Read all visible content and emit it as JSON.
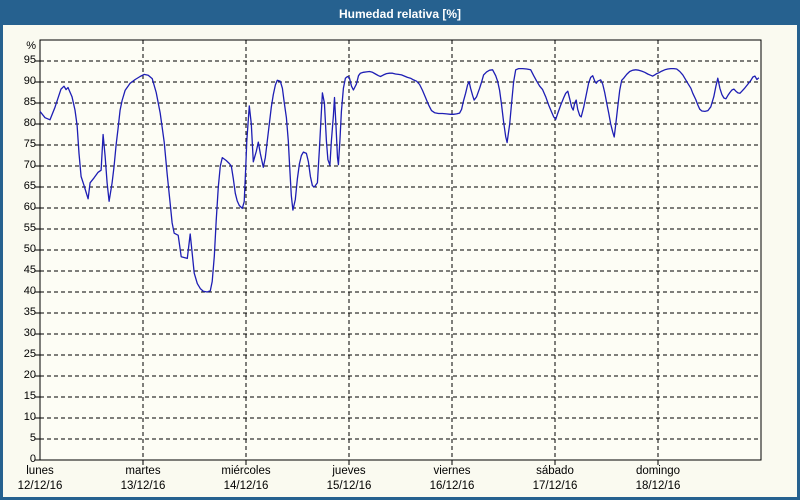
{
  "window": {
    "title": "Humedad relativa [%]"
  },
  "colors": {
    "titlebar_bg": "#26618F",
    "window_border": "#26618F",
    "background": "#FAFAF0",
    "plot_background": "#FDFDF5",
    "grid": "#000000",
    "line": "#1E1EB4",
    "title_text": "#FFFFFF",
    "label_text": "#000000"
  },
  "chart_data": {
    "type": "line",
    "title": "Humedad relativa [%]",
    "xlabel": "",
    "ylabel": "%",
    "ylim": [
      0,
      100
    ],
    "grid": "dashed",
    "legend": "none",
    "y_ticks": [
      0,
      5,
      10,
      15,
      20,
      25,
      30,
      35,
      40,
      45,
      50,
      55,
      60,
      65,
      70,
      75,
      80,
      85,
      90,
      95
    ],
    "x_categories": [
      {
        "day": "lunes",
        "date": "12/12/16"
      },
      {
        "day": "martes",
        "date": "13/12/16"
      },
      {
        "day": "miércoles",
        "date": "14/12/16"
      },
      {
        "day": "jueves",
        "date": "15/12/16"
      },
      {
        "day": "viernes",
        "date": "16/12/16"
      },
      {
        "day": "sábado",
        "date": "17/12/16"
      },
      {
        "day": "domingo",
        "date": "18/12/16"
      }
    ],
    "x_unit": "days_since_2016-12-12",
    "series": [
      {
        "name": "Humedad relativa",
        "color": "#1E1EB4",
        "points": [
          [
            0.0,
            83.0
          ],
          [
            0.049,
            81.5
          ],
          [
            0.097,
            81.0
          ],
          [
            0.146,
            84.0
          ],
          [
            0.204,
            88.3
          ],
          [
            0.233,
            89.0
          ],
          [
            0.253,
            88.2
          ],
          [
            0.272,
            88.7
          ],
          [
            0.311,
            86.5
          ],
          [
            0.34,
            83.3
          ],
          [
            0.36,
            79.7
          ],
          [
            0.379,
            73.0
          ],
          [
            0.399,
            67.5
          ],
          [
            0.428,
            65.3
          ],
          [
            0.447,
            63.8
          ],
          [
            0.467,
            62.2
          ],
          [
            0.486,
            66.0
          ],
          [
            0.525,
            67.2
          ],
          [
            0.564,
            68.5
          ],
          [
            0.593,
            69.0
          ],
          [
            0.613,
            77.5
          ],
          [
            0.632,
            72.4
          ],
          [
            0.651,
            66.0
          ],
          [
            0.671,
            61.6
          ],
          [
            0.7,
            66.0
          ],
          [
            0.719,
            70.0
          ],
          [
            0.739,
            75.0
          ],
          [
            0.758,
            79.0
          ],
          [
            0.778,
            83.3
          ],
          [
            0.797,
            85.6
          ],
          [
            0.826,
            88.0
          ],
          [
            0.875,
            89.7
          ],
          [
            0.924,
            90.6
          ],
          [
            0.972,
            91.3
          ],
          [
            1.011,
            91.8
          ],
          [
            1.05,
            91.6
          ],
          [
            1.089,
            90.8
          ],
          [
            1.128,
            87.5
          ],
          [
            1.167,
            82.6
          ],
          [
            1.206,
            75.7
          ],
          [
            1.235,
            68.0
          ],
          [
            1.264,
            61.0
          ],
          [
            1.283,
            56.5
          ],
          [
            1.303,
            54.0
          ],
          [
            1.342,
            53.5
          ],
          [
            1.371,
            48.4
          ],
          [
            1.43,
            48.0
          ],
          [
            1.458,
            53.8
          ],
          [
            1.478,
            49.2
          ],
          [
            1.497,
            44.5
          ],
          [
            1.527,
            42.0
          ],
          [
            1.556,
            40.8
          ],
          [
            1.585,
            40.2
          ],
          [
            1.624,
            40.0
          ],
          [
            1.653,
            40.3
          ],
          [
            1.672,
            42.5
          ],
          [
            1.692,
            48.5
          ],
          [
            1.711,
            57.0
          ],
          [
            1.731,
            65.0
          ],
          [
            1.75,
            70.0
          ],
          [
            1.77,
            72.0
          ],
          [
            1.808,
            71.3
          ],
          [
            1.838,
            70.6
          ],
          [
            1.857,
            70.0
          ],
          [
            1.877,
            67.0
          ],
          [
            1.896,
            63.5
          ],
          [
            1.915,
            61.7
          ],
          [
            1.935,
            60.6
          ],
          [
            1.964,
            59.9
          ],
          [
            1.983,
            61.5
          ],
          [
            1.998,
            70.0
          ],
          [
            2.008,
            76.0
          ],
          [
            2.022,
            81.0
          ],
          [
            2.032,
            84.3
          ],
          [
            2.051,
            80.0
          ],
          [
            2.071,
            71.0
          ],
          [
            2.1,
            73.5
          ],
          [
            2.119,
            75.7
          ],
          [
            2.139,
            73.0
          ],
          [
            2.168,
            69.7
          ],
          [
            2.187,
            72.0
          ],
          [
            2.207,
            76.0
          ],
          [
            2.226,
            80.0
          ],
          [
            2.246,
            84.0
          ],
          [
            2.265,
            87.0
          ],
          [
            2.285,
            89.3
          ],
          [
            2.304,
            90.4
          ],
          [
            2.333,
            90.2
          ],
          [
            2.353,
            88.5
          ],
          [
            2.372,
            85.0
          ],
          [
            2.392,
            81.5
          ],
          [
            2.411,
            76.0
          ],
          [
            2.421,
            71.0
          ],
          [
            2.44,
            63.0
          ],
          [
            2.455,
            59.5
          ],
          [
            2.479,
            62.0
          ],
          [
            2.499,
            67.0
          ],
          [
            2.518,
            70.5
          ],
          [
            2.538,
            72.5
          ],
          [
            2.557,
            73.3
          ],
          [
            2.586,
            73.0
          ],
          [
            2.606,
            71.0
          ],
          [
            2.625,
            67.5
          ],
          [
            2.645,
            65.3
          ],
          [
            2.664,
            65.0
          ],
          [
            2.693,
            66.0
          ],
          [
            2.713,
            74.0
          ],
          [
            2.732,
            83.0
          ],
          [
            2.742,
            87.4
          ],
          [
            2.761,
            85.0
          ],
          [
            2.781,
            76.0
          ],
          [
            2.795,
            71.5
          ],
          [
            2.815,
            70.2
          ],
          [
            2.829,
            76.0
          ],
          [
            2.849,
            82.0
          ],
          [
            2.859,
            86.3
          ],
          [
            2.873,
            80.0
          ],
          [
            2.888,
            72.0
          ],
          [
            2.897,
            70.3
          ],
          [
            2.912,
            76.0
          ],
          [
            2.926,
            83.0
          ],
          [
            2.946,
            88.5
          ],
          [
            2.965,
            90.9
          ],
          [
            2.985,
            91.3
          ],
          [
            3.004,
            91.0
          ],
          [
            3.024,
            89.0
          ],
          [
            3.043,
            88.1
          ],
          [
            3.072,
            89.5
          ],
          [
            3.092,
            91.5
          ],
          [
            3.111,
            92.1
          ],
          [
            3.14,
            92.3
          ],
          [
            3.17,
            92.4
          ],
          [
            3.199,
            92.5
          ],
          [
            3.228,
            92.3
          ],
          [
            3.257,
            91.9
          ],
          [
            3.286,
            91.5
          ],
          [
            3.306,
            91.3
          ],
          [
            3.335,
            91.7
          ],
          [
            3.364,
            92.0
          ],
          [
            3.393,
            92.1
          ],
          [
            3.422,
            92.1
          ],
          [
            3.451,
            91.9
          ],
          [
            3.481,
            91.8
          ],
          [
            3.51,
            91.7
          ],
          [
            3.539,
            91.4
          ],
          [
            3.568,
            91.1
          ],
          [
            3.597,
            90.9
          ],
          [
            3.626,
            90.5
          ],
          [
            3.656,
            90.2
          ],
          [
            3.685,
            89.4
          ],
          [
            3.714,
            88.0
          ],
          [
            3.743,
            86.3
          ],
          [
            3.772,
            84.6
          ],
          [
            3.801,
            83.2
          ],
          [
            3.831,
            82.7
          ],
          [
            3.87,
            82.5
          ],
          [
            3.908,
            82.5
          ],
          [
            3.947,
            82.4
          ],
          [
            3.986,
            82.3
          ],
          [
            4.015,
            82.3
          ],
          [
            4.044,
            82.4
          ],
          [
            4.074,
            82.6
          ],
          [
            4.093,
            83.5
          ],
          [
            4.112,
            85.5
          ],
          [
            4.132,
            87.3
          ],
          [
            4.151,
            89.3
          ],
          [
            4.166,
            90.1
          ],
          [
            4.181,
            88.5
          ],
          [
            4.2,
            86.8
          ],
          [
            4.215,
            85.7
          ],
          [
            4.239,
            86.5
          ],
          [
            4.268,
            88.5
          ],
          [
            4.287,
            90.0
          ],
          [
            4.307,
            91.7
          ],
          [
            4.336,
            92.4
          ],
          [
            4.365,
            92.8
          ],
          [
            4.394,
            92.9
          ],
          [
            4.424,
            91.5
          ],
          [
            4.443,
            90.2
          ],
          [
            4.462,
            88.0
          ],
          [
            4.482,
            84.5
          ],
          [
            4.501,
            80.5
          ],
          [
            4.521,
            77.0
          ],
          [
            4.535,
            75.6
          ],
          [
            4.56,
            80.0
          ],
          [
            4.579,
            85.0
          ],
          [
            4.598,
            90.0
          ],
          [
            4.618,
            92.9
          ],
          [
            4.647,
            93.2
          ],
          [
            4.686,
            93.2
          ],
          [
            4.725,
            93.1
          ],
          [
            4.764,
            92.9
          ],
          [
            4.793,
            91.5
          ],
          [
            4.822,
            90.2
          ],
          [
            4.851,
            89.0
          ],
          [
            4.88,
            88.2
          ],
          [
            4.91,
            86.5
          ],
          [
            4.939,
            84.5
          ],
          [
            4.968,
            82.8
          ],
          [
            4.987,
            81.7
          ],
          [
            5.007,
            81.1
          ],
          [
            5.026,
            82.5
          ],
          [
            5.055,
            84.5
          ],
          [
            5.085,
            86.3
          ],
          [
            5.104,
            87.3
          ],
          [
            5.124,
            87.8
          ],
          [
            5.143,
            86.0
          ],
          [
            5.162,
            84.0
          ],
          [
            5.177,
            83.3
          ],
          [
            5.191,
            85.0
          ],
          [
            5.206,
            85.7
          ],
          [
            5.22,
            83.5
          ],
          [
            5.24,
            82.0
          ],
          [
            5.254,
            81.7
          ],
          [
            5.279,
            84.0
          ],
          [
            5.308,
            87.5
          ],
          [
            5.327,
            89.8
          ],
          [
            5.347,
            91.1
          ],
          [
            5.366,
            91.5
          ],
          [
            5.386,
            90.2
          ],
          [
            5.4,
            89.7
          ],
          [
            5.415,
            90.2
          ],
          [
            5.444,
            90.5
          ],
          [
            5.463,
            89.5
          ],
          [
            5.483,
            87.5
          ],
          [
            5.502,
            85.0
          ],
          [
            5.522,
            82.5
          ],
          [
            5.541,
            80.0
          ],
          [
            5.56,
            78.1
          ],
          [
            5.575,
            76.9
          ],
          [
            5.59,
            80.0
          ],
          [
            5.609,
            84.0
          ],
          [
            5.628,
            88.0
          ],
          [
            5.648,
            90.4
          ],
          [
            5.667,
            90.9
          ],
          [
            5.696,
            91.8
          ],
          [
            5.725,
            92.5
          ],
          [
            5.755,
            92.8
          ],
          [
            5.784,
            92.9
          ],
          [
            5.813,
            92.8
          ],
          [
            5.842,
            92.6
          ],
          [
            5.871,
            92.3
          ],
          [
            5.9,
            91.9
          ],
          [
            5.93,
            91.6
          ],
          [
            5.949,
            91.4
          ],
          [
            5.968,
            91.7
          ],
          [
            5.988,
            92.0
          ],
          [
            6.007,
            92.2
          ],
          [
            6.037,
            92.6
          ],
          [
            6.066,
            92.9
          ],
          [
            6.095,
            93.1
          ],
          [
            6.124,
            93.2
          ],
          [
            6.153,
            93.2
          ],
          [
            6.182,
            93.1
          ],
          [
            6.212,
            92.5
          ],
          [
            6.241,
            91.7
          ],
          [
            6.27,
            90.5
          ],
          [
            6.289,
            89.7
          ],
          [
            6.319,
            88.5
          ],
          [
            6.338,
            87.3
          ],
          [
            6.367,
            85.8
          ],
          [
            6.387,
            84.5
          ],
          [
            6.406,
            83.5
          ],
          [
            6.426,
            83.1
          ],
          [
            6.455,
            83.0
          ],
          [
            6.484,
            83.2
          ],
          [
            6.513,
            84.1
          ],
          [
            6.542,
            86.5
          ],
          [
            6.562,
            89.0
          ],
          [
            6.581,
            90.9
          ],
          [
            6.601,
            88.5
          ],
          [
            6.62,
            87.0
          ],
          [
            6.64,
            86.2
          ],
          [
            6.659,
            86.0
          ],
          [
            6.679,
            86.8
          ],
          [
            6.698,
            87.5
          ],
          [
            6.717,
            88.1
          ],
          [
            6.737,
            88.3
          ],
          [
            6.756,
            87.8
          ],
          [
            6.776,
            87.4
          ],
          [
            6.795,
            87.3
          ],
          [
            6.815,
            87.8
          ],
          [
            6.844,
            88.6
          ],
          [
            6.873,
            89.5
          ],
          [
            6.902,
            90.4
          ],
          [
            6.921,
            91.2
          ],
          [
            6.941,
            91.4
          ],
          [
            6.96,
            90.6
          ],
          [
            6.98,
            91.0
          ]
        ]
      }
    ]
  }
}
